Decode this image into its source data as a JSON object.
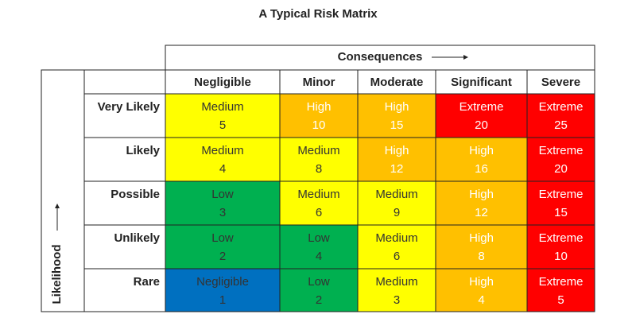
{
  "title": "A Typical Risk Matrix",
  "column_axis": "Consequences",
  "row_axis": "Likelihood",
  "columns": [
    "Negligible",
    "Minor",
    "Moderate",
    "Significant",
    "Severe"
  ],
  "colors": {
    "Negligible": "#0070c0",
    "Low": "#00b050",
    "Medium": "#ffff00",
    "High": "#ffc000",
    "Extreme": "#ff0000"
  },
  "text_colors": {
    "Negligible": "#333333",
    "Low": "#333333",
    "Medium": "#333333",
    "High": "#ffffff",
    "Extreme": "#ffffff"
  },
  "rows": [
    {
      "label": "Very Likely",
      "cells": [
        {
          "level": "Medium",
          "score": 5
        },
        {
          "level": "High",
          "score": 10
        },
        {
          "level": "High",
          "score": 15
        },
        {
          "level": "Extreme",
          "score": 20
        },
        {
          "level": "Extreme",
          "score": 25
        }
      ]
    },
    {
      "label": "Likely",
      "cells": [
        {
          "level": "Medium",
          "score": 4
        },
        {
          "level": "Medium",
          "score": 8
        },
        {
          "level": "High",
          "score": 12
        },
        {
          "level": "High",
          "score": 16
        },
        {
          "level": "Extreme",
          "score": 20
        }
      ]
    },
    {
      "label": "Possible",
      "cells": [
        {
          "level": "Low",
          "score": 3
        },
        {
          "level": "Medium",
          "score": 6
        },
        {
          "level": "Medium",
          "score": 9
        },
        {
          "level": "High",
          "score": 12
        },
        {
          "level": "Extreme",
          "score": 15
        }
      ]
    },
    {
      "label": "Unlikely",
      "cells": [
        {
          "level": "Low",
          "score": 2
        },
        {
          "level": "Low",
          "score": 4
        },
        {
          "level": "Medium",
          "score": 6
        },
        {
          "level": "High",
          "score": 8
        },
        {
          "level": "Extreme",
          "score": 10
        }
      ]
    },
    {
      "label": "Rare",
      "cells": [
        {
          "level": "Negligible",
          "score": 1
        },
        {
          "level": "Low",
          "score": 2
        },
        {
          "level": "Medium",
          "score": 3
        },
        {
          "level": "High",
          "score": 4
        },
        {
          "level": "Extreme",
          "score": 5
        }
      ]
    }
  ]
}
